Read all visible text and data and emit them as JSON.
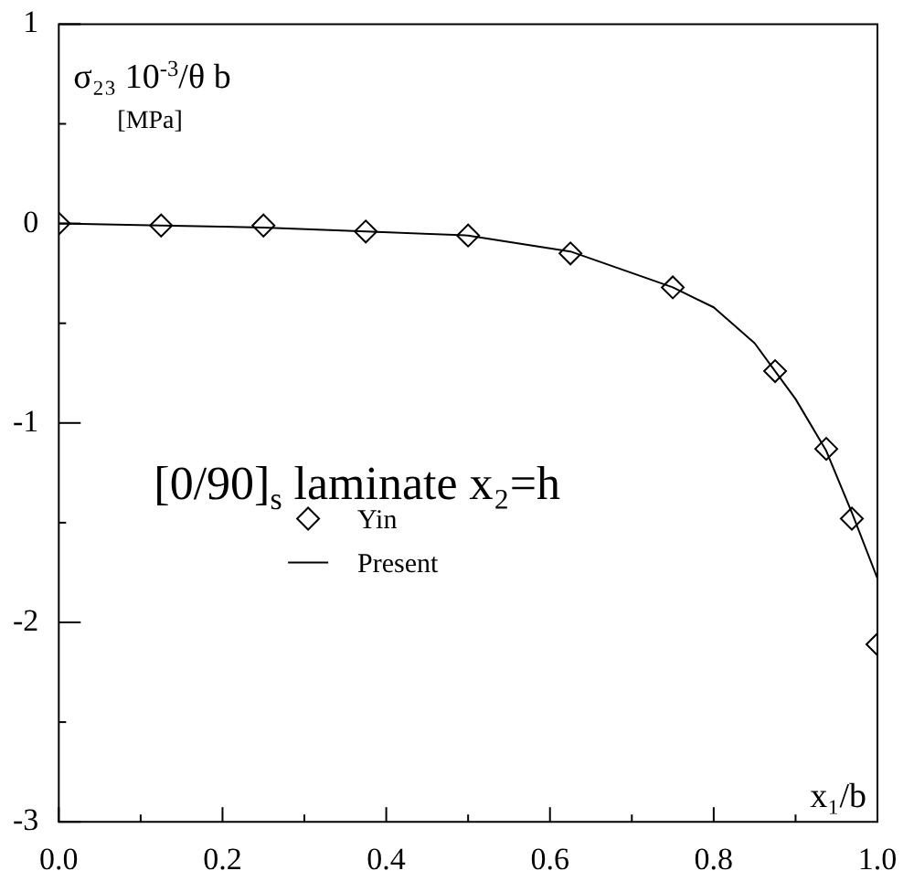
{
  "chart_data": {
    "type": "line",
    "xlabel": "x₁/b",
    "ylabel": "σ₂₃ 10$^{-3}$/θ b\n[MPa]",
    "annotations": [
      "[0/90]$_{s}$ laminate x₂=h"
    ],
    "xlim": [
      0,
      1
    ],
    "ylim": [
      -3,
      1
    ],
    "xticks": [
      {
        "value": 0,
        "label": "0.0"
      },
      {
        "value": 0.1,
        "label": null
      },
      {
        "value": 0.2,
        "label": "0.2"
      },
      {
        "value": 0.3,
        "label": null
      },
      {
        "value": 0.4,
        "label": "0.4"
      },
      {
        "value": 0.5,
        "label": null
      },
      {
        "value": 0.6,
        "label": "0.6"
      },
      {
        "value": 0.7,
        "label": null
      },
      {
        "value": 0.8,
        "label": "0.8"
      },
      {
        "value": 0.9,
        "label": null
      },
      {
        "value": 1,
        "label": "1.0"
      }
    ],
    "yticks": [
      -3,
      {
        "value": -2.5,
        "label": null
      },
      -2,
      {
        "value": -1.5,
        "label": null
      },
      -1,
      {
        "value": -0.5,
        "label": null
      },
      0,
      {
        "value": 0.5,
        "label": null
      },
      1
    ],
    "grid": false,
    "legend": "center",
    "series": [
      {
        "name": "Yin",
        "type": "scatter",
        "marker": "diamond",
        "color": "#000000",
        "x": [
          0,
          0.125,
          0.25,
          0.375,
          0.5,
          0.625,
          0.75,
          0.875,
          0.9375,
          0.96875,
          1
        ],
        "values": [
          0,
          -0.01,
          -0.01,
          -0.04,
          -0.06,
          -0.15,
          -0.32,
          -0.74,
          -1.13,
          -1.48,
          -2.11
        ]
      },
      {
        "name": "Present",
        "type": "line",
        "marker": "none",
        "line_style": "solid",
        "color": "#000000",
        "x": [
          0,
          0.125,
          0.25,
          0.375,
          0.5,
          0.625,
          0.75,
          0.8,
          0.85,
          0.875,
          0.9,
          0.9375,
          0.96875,
          1
        ],
        "values": [
          0,
          -0.01,
          -0.02,
          -0.04,
          -0.06,
          -0.14,
          -0.32,
          -0.42,
          -0.6,
          -0.74,
          -0.88,
          -1.14,
          -1.45,
          -1.78
        ]
      }
    ]
  }
}
